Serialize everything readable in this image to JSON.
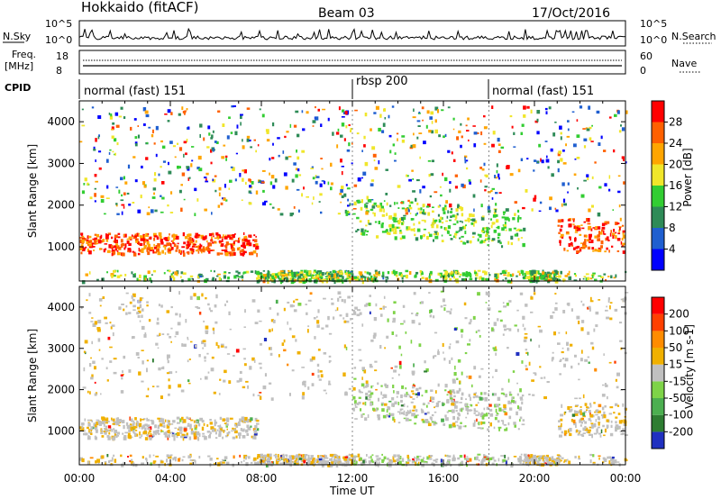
{
  "header": {
    "station": "Hokkaido (fitACF)",
    "beam": "Beam 03",
    "date": "17/Oct/2016"
  },
  "top_panels": {
    "nsky_label": "N.Sky",
    "nsky_ticks": [
      "10^5",
      "10^0"
    ],
    "nsearch_label": "N.Search",
    "nsearch_ticks": [
      "10^5",
      "10^0"
    ],
    "freq_label_1": "Freq.",
    "freq_label_2": "[MHz]",
    "freq_ticks": [
      "18",
      "8"
    ],
    "nave_label": "Nave",
    "nave_ticks": [
      "60",
      "0"
    ],
    "cpid_label": "CPID",
    "cpid_segments": [
      {
        "label": "normal (fast) 151",
        "start": 0,
        "end": 12
      },
      {
        "label": "rbsp 200",
        "start": 12,
        "end": 18
      },
      {
        "label": "normal (fast) 151",
        "start": 18,
        "end": 24
      }
    ]
  },
  "chart_data": [
    {
      "type": "heatmap",
      "name": "power",
      "ylabel": "Slant Range [km]",
      "xlabel": "Time UT",
      "ylim": [
        180,
        4500
      ],
      "xlim": [
        0,
        24
      ],
      "y_ticks": [
        "1000",
        "2000",
        "3000",
        "4000"
      ],
      "x_ticks": [
        "00:00",
        "04:00",
        "08:00",
        "12:00",
        "16:00",
        "20:00",
        "00:00"
      ],
      "colorbar": {
        "label": "Power [dB]",
        "range": [
          0,
          32
        ],
        "ticks": [
          "4",
          "8",
          "12",
          "16",
          "20",
          "24",
          "28"
        ],
        "colors": [
          "#0000ff",
          "#1f5fd0",
          "#2e8b57",
          "#32cd32",
          "#f0e62a",
          "#ffa500",
          "#ff6000",
          "#ff0000"
        ]
      },
      "features": [
        {
          "t": [
            0,
            7.8
          ],
          "range": [
            850,
            1350
          ],
          "level": "high"
        },
        {
          "t": [
            21,
            24
          ],
          "range": [
            900,
            1700
          ],
          "level": "high"
        },
        {
          "t": [
            12,
            19.5
          ],
          "range": [
            1100,
            2200
          ],
          "level": "medium"
        }
      ]
    },
    {
      "type": "heatmap",
      "name": "velocity",
      "ylabel": "Slant Range [km]",
      "xlabel": "Time UT",
      "ylim": [
        180,
        4500
      ],
      "xlim": [
        0,
        24
      ],
      "y_ticks": [
        "1000",
        "2000",
        "3000",
        "4000"
      ],
      "x_ticks": [
        "00:00",
        "04:00",
        "08:00",
        "12:00",
        "16:00",
        "20:00",
        "00:00"
      ],
      "colorbar": {
        "label": "Velocity [m s-1]",
        "range": [
          -240,
          240
        ],
        "ticks": [
          "200",
          "100",
          "50",
          "15",
          "-15",
          "-50",
          "-100",
          "-200"
        ],
        "colors": [
          "#2030c0",
          "#2e7d32",
          "#4caf50",
          "#7ed348",
          "#c0c0c0",
          "#f0b000",
          "#ff8c00",
          "#ff4000",
          "#ff0000"
        ]
      }
    }
  ]
}
